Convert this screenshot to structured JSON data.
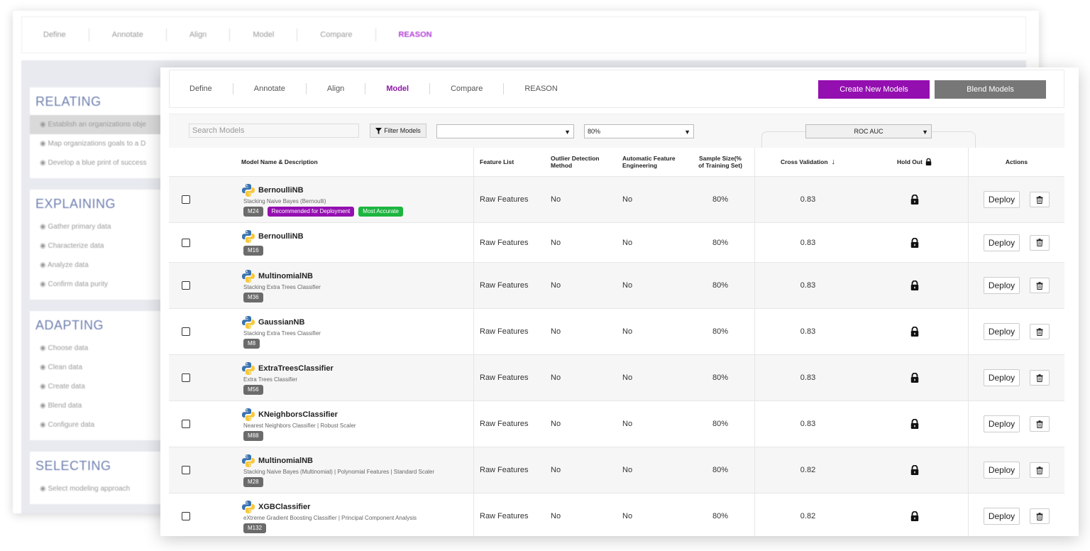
{
  "background": {
    "nav_tabs": [
      "Define",
      "Annotate",
      "Align",
      "Model",
      "Compare",
      "REASON"
    ],
    "active_tab": "REASON",
    "sections": [
      {
        "title": "RELATING",
        "items": [
          "Establish an organizations obje",
          "Map organizations goals to a D",
          "Develop a blue print of success"
        ]
      },
      {
        "title": "EXPLAINING",
        "items": [
          "Gather primary data",
          "Characterize data",
          "Analyze data",
          "Confirm data purity"
        ]
      },
      {
        "title": "ADAPTING",
        "items": [
          "Choose data",
          "Clean data",
          "Create data",
          "Blend data",
          "Configure data"
        ]
      },
      {
        "title": "SELECTING",
        "items": [
          "Select modeling approach"
        ]
      }
    ]
  },
  "nav": {
    "tabs": [
      "Define",
      "Annotate",
      "Align",
      "Model",
      "Compare",
      "REASON"
    ],
    "active": "Model",
    "create_label": "Create New Models",
    "blend_label": "Blend Models"
  },
  "toolbar": {
    "search_placeholder": "Search Models",
    "filter_label": "Filter Models",
    "select1_value": "",
    "select2_value": "80%",
    "metric_value": "ROC AUC"
  },
  "table": {
    "headers": {
      "name": "Model Name & Description",
      "feature": "Feature List",
      "outlier": "Outlier Detection Method",
      "auto": "Automatic Feature Engineering",
      "size": "Sample Size(% of Training Set)",
      "cv": "Cross Validation",
      "holdout": "Hold Out",
      "actions": "Actions"
    },
    "deploy_label": "Deploy",
    "rows": [
      {
        "name": "BernoulliNB",
        "desc": "Stacking Naive Bayes (Bernoulli)",
        "id": "M24",
        "tags": [
          "Recommended for Deployment",
          "Most Accurate"
        ],
        "feature": "Raw Features",
        "outlier": "No",
        "auto": "No",
        "size": "80%",
        "cv": "0.83"
      },
      {
        "name": "BernoulliNB",
        "desc": "",
        "id": "M16",
        "tags": [],
        "feature": "Raw Features",
        "outlier": "No",
        "auto": "No",
        "size": "80%",
        "cv": "0.83"
      },
      {
        "name": "MultinomialNB",
        "desc": "Stacking Extra Trees Classifier",
        "id": "M36",
        "tags": [],
        "feature": "Raw Features",
        "outlier": "No",
        "auto": "No",
        "size": "80%",
        "cv": "0.83"
      },
      {
        "name": "GaussianNB",
        "desc": "Stacking Extra Trees Classifier",
        "id": "M8",
        "tags": [],
        "feature": "Raw Features",
        "outlier": "No",
        "auto": "No",
        "size": "80%",
        "cv": "0.83"
      },
      {
        "name": "ExtraTreesClassifier",
        "desc": "Extra Trees Classifier",
        "id": "M56",
        "tags": [],
        "feature": "Raw Features",
        "outlier": "No",
        "auto": "No",
        "size": "80%",
        "cv": "0.83"
      },
      {
        "name": "KNeighborsClassifier",
        "desc": "Nearest Neighbors Classifier | Robust Scaler",
        "id": "M88",
        "tags": [],
        "feature": "Raw Features",
        "outlier": "No",
        "auto": "No",
        "size": "80%",
        "cv": "0.83"
      },
      {
        "name": "MultinomialNB",
        "desc": "Stacking Naive Bayes (Multinomial) | Polynomial Features | Standard Scaler",
        "id": "M28",
        "tags": [],
        "feature": "Raw Features",
        "outlier": "No",
        "auto": "No",
        "size": "80%",
        "cv": "0.82"
      },
      {
        "name": "XGBClassifier",
        "desc": "eXtreme Gradient Boosting Classifier | Principal Component Analysis",
        "id": "M132",
        "tags": [],
        "feature": "Raw Features",
        "outlier": "No",
        "auto": "No",
        "size": "80%",
        "cv": "0.82"
      }
    ]
  },
  "colors": {
    "accent": "#940fb0",
    "secondary": "#777777",
    "success": "#1cb53f"
  }
}
